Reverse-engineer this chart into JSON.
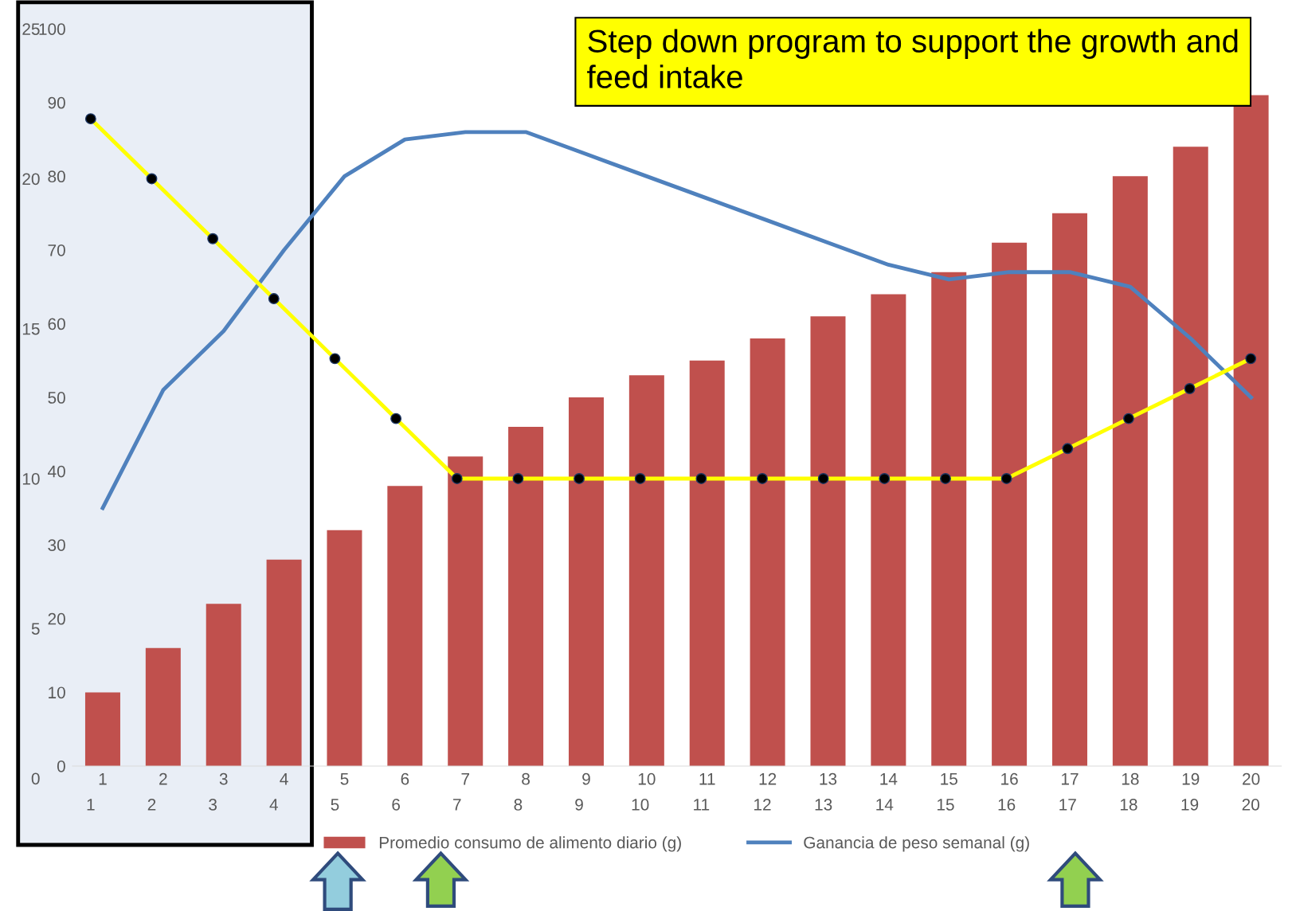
{
  "chart_data": [
    {
      "type": "bar",
      "categories": [
        "1",
        "2",
        "3",
        "4",
        "5",
        "6",
        "7",
        "8",
        "9",
        "10",
        "11",
        "12",
        "13",
        "14",
        "15",
        "16",
        "17",
        "18",
        "19",
        "20"
      ],
      "series": [
        {
          "name": "Promedio consumo de alimento diario (g)",
          "type": "bar",
          "color": "#c0504d",
          "values": [
            10,
            16,
            22,
            28,
            32,
            38,
            42,
            46,
            50,
            53,
            55,
            58,
            61,
            64,
            67,
            71,
            75,
            80,
            84,
            91
          ]
        },
        {
          "name": "Ganancia de peso semanal (g)",
          "type": "line",
          "color": "#4f81bd",
          "values": [
            35,
            51,
            59,
            70,
            80,
            85,
            86,
            86,
            83,
            80,
            77,
            74,
            71,
            68,
            66,
            67,
            67,
            65,
            58,
            50
          ]
        }
      ],
      "ylim": [
        0,
        100
      ],
      "yticks": [
        0,
        10,
        20,
        30,
        40,
        50,
        60,
        70,
        80,
        90,
        100
      ],
      "grid": false,
      "legend": "bottom",
      "bands": [
        {
          "axis": "x",
          "from": "1",
          "to": "4",
          "color": "#e9eef6"
        }
      ],
      "annotations": [
        "Step down program to support the growth and feed intake"
      ]
    },
    {
      "type": "line",
      "categories": [
        "1",
        "2",
        "3",
        "4",
        "5",
        "6",
        "7",
        "8",
        "9",
        "10",
        "11",
        "12",
        "13",
        "14",
        "15",
        "16",
        "17",
        "18",
        "19",
        "20"
      ],
      "series": [
        {
          "color": "#ffff00",
          "values": [
            22,
            20,
            18,
            16,
            14,
            12,
            10,
            10,
            10,
            10,
            10,
            10,
            10,
            10,
            10,
            10,
            11,
            12,
            13,
            14
          ]
        }
      ],
      "ylim": [
        0,
        25
      ],
      "yticks": [
        0,
        5,
        10,
        15,
        20,
        25
      ],
      "marker": "circle",
      "line_style": "solid",
      "grid": false
    }
  ]
}
